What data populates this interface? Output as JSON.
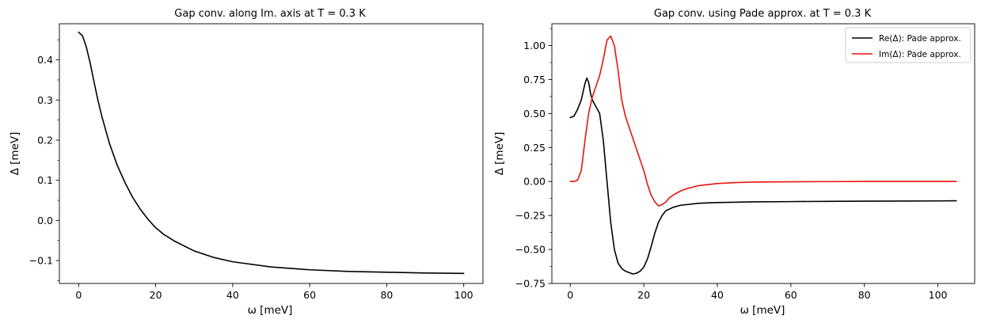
{
  "chart_data": [
    {
      "type": "line",
      "title": "Gap conv. along Im. axis at T = 0.3 K",
      "xlabel": "ω [meV]",
      "ylabel": "Δ [meV]",
      "xlim": [
        -5,
        105
      ],
      "ylim": [
        -0.157,
        0.49
      ],
      "xticks": [
        0,
        20,
        40,
        60,
        80,
        100
      ],
      "xtick_labels": [
        "0",
        "20",
        "40",
        "60",
        "80",
        "100"
      ],
      "yticks": [
        -0.1,
        0.0,
        0.1,
        0.2,
        0.3,
        0.4
      ],
      "ytick_labels": [
        "−0.1",
        "0.0",
        "0.1",
        "0.2",
        "0.3",
        "0.4"
      ],
      "grid": false,
      "series": [
        {
          "color": "#000000",
          "x": [
            0,
            1,
            2,
            3,
            4,
            5,
            6,
            8,
            10,
            12,
            14,
            16,
            18,
            20,
            22,
            25,
            30,
            35,
            40,
            50,
            60,
            70,
            80,
            90,
            100
          ],
          "y": [
            0.469,
            0.46,
            0.432,
            0.392,
            0.345,
            0.3,
            0.26,
            0.192,
            0.138,
            0.095,
            0.058,
            0.028,
            0.003,
            -0.018,
            -0.034,
            -0.052,
            -0.076,
            -0.092,
            -0.103,
            -0.116,
            -0.123,
            -0.127,
            -0.129,
            -0.131,
            -0.132
          ]
        }
      ]
    },
    {
      "type": "line",
      "title": "Gap conv. using Pade approx. at T = 0.3 K",
      "xlabel": "ω [meV]",
      "ylabel": "Δ [meV]",
      "xlim": [
        -5,
        110
      ],
      "ylim": [
        -0.75,
        1.16
      ],
      "xticks": [
        0,
        20,
        40,
        60,
        80,
        100
      ],
      "xtick_labels": [
        "0",
        "20",
        "40",
        "60",
        "80",
        "100"
      ],
      "yticks": [
        -0.75,
        -0.5,
        -0.25,
        0.0,
        0.25,
        0.5,
        0.75,
        1.0
      ],
      "ytick_labels": [
        "−0.75",
        "−0.50",
        "−0.25",
        "0.00",
        "0.25",
        "0.50",
        "0.75",
        "1.00"
      ],
      "grid": false,
      "legend": "top-right",
      "series": [
        {
          "name": "Re(Δ): Pade approx.",
          "color": "#000000",
          "x": [
            0,
            1,
            2,
            3,
            4,
            4.5,
            5,
            5.5,
            6,
            7,
            8,
            9,
            10,
            11,
            12,
            13,
            14,
            15,
            16,
            17,
            18,
            19,
            20,
            21,
            22,
            23,
            24,
            25,
            26,
            28,
            30,
            35,
            40,
            50,
            60,
            70,
            80,
            90,
            100,
            105
          ],
          "y": [
            0.47,
            0.48,
            0.53,
            0.6,
            0.72,
            0.76,
            0.73,
            0.65,
            0.6,
            0.55,
            0.5,
            0.3,
            0.0,
            -0.3,
            -0.5,
            -0.6,
            -0.64,
            -0.66,
            -0.67,
            -0.68,
            -0.675,
            -0.66,
            -0.63,
            -0.57,
            -0.48,
            -0.38,
            -0.3,
            -0.25,
            -0.215,
            -0.19,
            -0.175,
            -0.16,
            -0.155,
            -0.15,
            -0.148,
            -0.146,
            -0.145,
            -0.144,
            -0.143,
            -0.142
          ]
        },
        {
          "name": "Im(Δ): Pade approx.",
          "color": "#e8150d",
          "x": [
            0,
            1,
            2,
            3,
            4,
            5,
            6,
            7,
            8,
            9,
            10,
            11,
            12,
            13,
            14,
            15,
            16,
            17,
            18,
            19,
            20,
            21,
            22,
            23,
            24,
            25,
            26,
            27,
            28,
            30,
            32,
            35,
            40,
            45,
            50,
            60,
            70,
            80,
            90,
            100,
            105
          ],
          "y": [
            0.0,
            0.0,
            0.01,
            0.08,
            0.3,
            0.5,
            0.62,
            0.7,
            0.78,
            0.9,
            1.04,
            1.07,
            1.0,
            0.82,
            0.6,
            0.48,
            0.4,
            0.32,
            0.24,
            0.16,
            0.08,
            -0.02,
            -0.1,
            -0.15,
            -0.18,
            -0.17,
            -0.15,
            -0.12,
            -0.1,
            -0.07,
            -0.05,
            -0.03,
            -0.015,
            -0.008,
            -0.004,
            -0.002,
            -0.001,
            0.0,
            0.0,
            0.0,
            0.0
          ]
        }
      ]
    }
  ]
}
